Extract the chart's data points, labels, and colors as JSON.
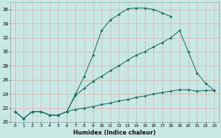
{
  "xlabel": "Humidex (Indice chaleur)",
  "bg_color": "#c8e8e4",
  "grid_color": "#e0a8a8",
  "line_color": "#1a7060",
  "xlim": [
    -0.5,
    23.5
  ],
  "ylim": [
    20,
    37
  ],
  "xticks": [
    0,
    1,
    2,
    3,
    4,
    5,
    6,
    7,
    8,
    9,
    10,
    11,
    12,
    13,
    14,
    15,
    16,
    17,
    18,
    19,
    20,
    21,
    22,
    23
  ],
  "yticks": [
    20,
    22,
    24,
    26,
    28,
    30,
    32,
    34,
    36
  ],
  "line1_x": [
    0,
    1,
    2,
    3,
    4,
    5,
    6,
    7,
    8,
    9,
    10,
    11,
    12,
    13,
    14,
    15,
    16,
    17,
    18
  ],
  "line1_y": [
    21.5,
    20.5,
    21.5,
    21.5,
    21.0,
    21.0,
    21.5,
    24.0,
    26.5,
    29.5,
    33.0,
    34.5,
    35.3,
    36.1,
    36.2,
    36.2,
    36.0,
    35.5,
    35.0
  ],
  "line2_x": [
    0,
    1,
    2,
    3,
    4,
    5,
    6,
    7,
    8,
    9,
    10,
    11,
    12,
    13,
    14,
    15,
    16,
    17,
    18,
    19,
    20,
    21,
    22,
    23
  ],
  "line2_y": [
    21.5,
    20.5,
    21.5,
    21.5,
    21.0,
    21.0,
    21.5,
    23.8,
    24.8,
    25.8,
    26.5,
    27.3,
    28.0,
    28.8,
    29.5,
    30.0,
    30.7,
    31.3,
    32.0,
    33.0,
    30.0,
    27.0,
    25.5,
    24.5
  ],
  "line3_x": [
    0,
    1,
    2,
    3,
    4,
    5,
    6,
    7,
    8,
    9,
    10,
    11,
    12,
    13,
    14,
    15,
    16,
    17,
    18,
    19,
    20,
    21,
    22,
    23
  ],
  "line3_y": [
    21.5,
    20.5,
    21.5,
    21.5,
    21.0,
    21.0,
    21.5,
    21.8,
    22.0,
    22.2,
    22.5,
    22.7,
    23.0,
    23.2,
    23.5,
    23.7,
    24.0,
    24.2,
    24.4,
    24.6,
    24.6,
    24.4,
    24.5,
    24.5
  ]
}
